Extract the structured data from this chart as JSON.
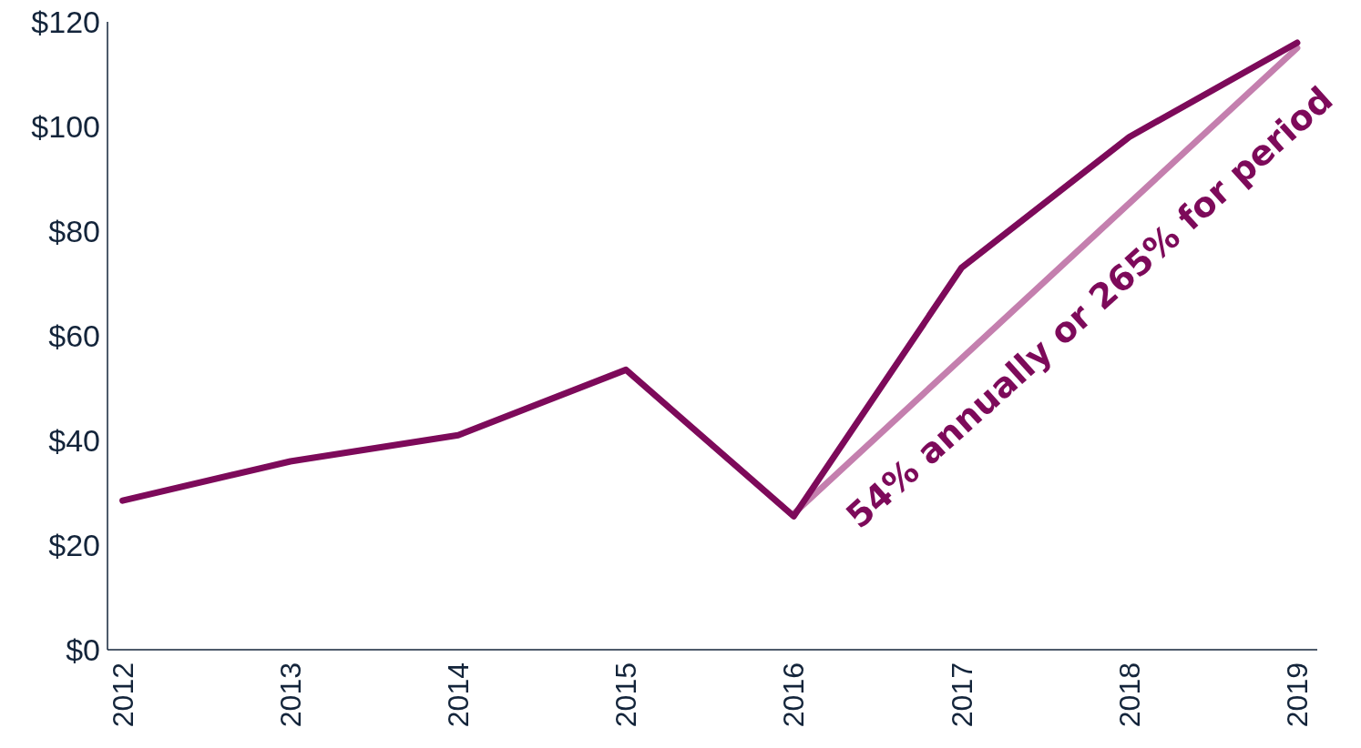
{
  "chart_data": {
    "type": "line",
    "categories": [
      "2012",
      "2013",
      "2014",
      "2015",
      "2016",
      "2017",
      "2018",
      "2019"
    ],
    "series": [
      {
        "color": "#7d0a5a",
        "values": [
          28.5,
          36,
          41,
          53.5,
          25.5,
          73,
          98,
          116
        ]
      },
      {
        "type": "line",
        "color": "#c47fae",
        "values": [
          null,
          null,
          null,
          null,
          26,
          null,
          null,
          115
        ]
      }
    ],
    "ylim": [
      0,
      120
    ],
    "yticks": [
      {
        "value": 0,
        "label": "$0"
      },
      {
        "value": 20,
        "label": "$20"
      },
      {
        "value": 40,
        "label": "$40"
      },
      {
        "value": 60,
        "label": "$60"
      },
      {
        "value": 80,
        "label": "$80"
      },
      {
        "value": 100,
        "label": "$100"
      },
      {
        "value": 120,
        "label": "$120"
      }
    ],
    "grid": false,
    "annotations": [
      "54% annually or 265% for period"
    ]
  }
}
